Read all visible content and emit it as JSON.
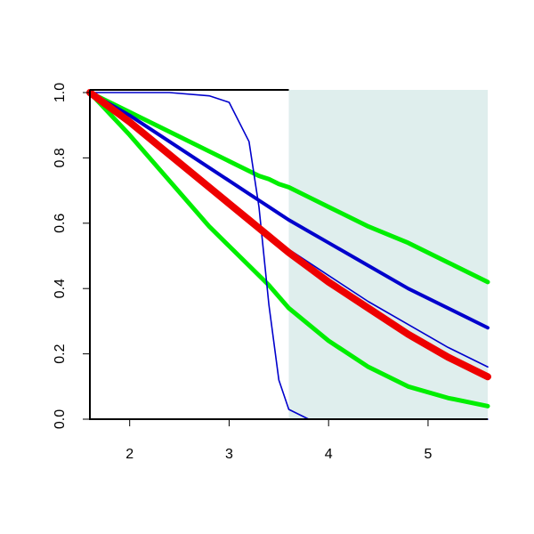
{
  "chart_data": {
    "type": "line",
    "x": [
      1.6,
      2.0,
      2.4,
      2.8,
      3.0,
      3.2,
      3.3,
      3.4,
      3.5,
      3.6,
      3.8,
      4.0,
      4.4,
      4.8,
      5.2,
      5.6
    ],
    "series": [
      {
        "color": "#00ee00",
        "values": [
          1,
          0.94,
          0.88,
          0.82,
          0.79,
          0.76,
          0.745,
          0.735,
          0.72,
          0.71,
          0.68,
          0.65,
          0.59,
          0.54,
          0.48,
          0.42
        ]
      },
      {
        "color": "#00ee00",
        "values": [
          1,
          0.87,
          0.73,
          0.59,
          0.53,
          0.47,
          0.44,
          0.41,
          0.375,
          0.34,
          0.29,
          0.24,
          0.16,
          0.1,
          0.065,
          0.04
        ]
      },
      {
        "color": "#0000cc",
        "values": [
          1,
          0.93,
          0.85,
          0.77,
          0.73,
          0.69,
          0.67,
          0.65,
          0.63,
          0.61,
          0.575,
          0.54,
          0.47,
          0.4,
          0.34,
          0.28
        ]
      },
      {
        "color": "#0000cc",
        "values": [
          1,
          0.9,
          0.8,
          0.7,
          0.655,
          0.61,
          0.59,
          0.565,
          0.54,
          0.52,
          0.48,
          0.44,
          0.36,
          0.29,
          0.22,
          0.16
        ]
      },
      {
        "color": "#0000cc",
        "values": [
          1,
          1,
          1,
          0.99,
          0.97,
          0.85,
          0.65,
          0.35,
          0.12,
          0.03,
          0,
          0,
          0,
          0,
          0,
          0
        ]
      },
      {
        "color": "#ee0000",
        "values": [
          1,
          0.91,
          0.81,
          0.71,
          0.66,
          0.61,
          0.585,
          0.56,
          0.535,
          0.51,
          0.465,
          0.42,
          0.34,
          0.26,
          0.19,
          0.13
        ]
      }
    ],
    "xlim": [
      1.6,
      5.6
    ],
    "xticks": [
      2,
      3,
      4,
      5
    ],
    "ylim": [
      0,
      1
    ],
    "yticks": [
      {
        "value": 0,
        "label": "0.0"
      },
      0.2,
      0.4,
      0.6,
      0.8,
      {
        "value": 1,
        "label": "1.0"
      }
    ],
    "shaded_region": {
      "xlim": [
        3.6,
        5.6
      ],
      "color": "#dfeeed"
    }
  }
}
